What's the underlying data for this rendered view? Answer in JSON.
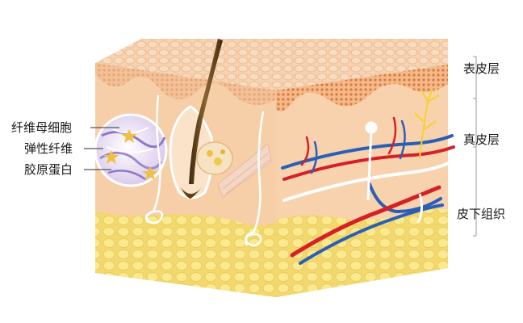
{
  "labels": {
    "left": [
      "纤维母细胞",
      "弹性纤维",
      "胶原蛋白"
    ],
    "right": [
      "表皮层",
      "真皮层",
      "皮下组织"
    ]
  },
  "colors": {
    "background": "#ffffff",
    "epidermis": "#f3c9a4",
    "dermis": "#f6cfa8",
    "subcutaneous_fat": "#f6e27a",
    "artery": "#d61f26",
    "vein": "#2a5fb8",
    "nerve": "#ffffff",
    "hair": "#6b4a1f",
    "zoom_circle": "#d9c8ea"
  },
  "icons": [
    "hair-shaft-icon",
    "sebaceous-gland-icon",
    "sweat-gland-icon",
    "blood-vessel-icon",
    "nerve-fiber-icon",
    "fat-cell-icon",
    "fibroblast-icon"
  ]
}
